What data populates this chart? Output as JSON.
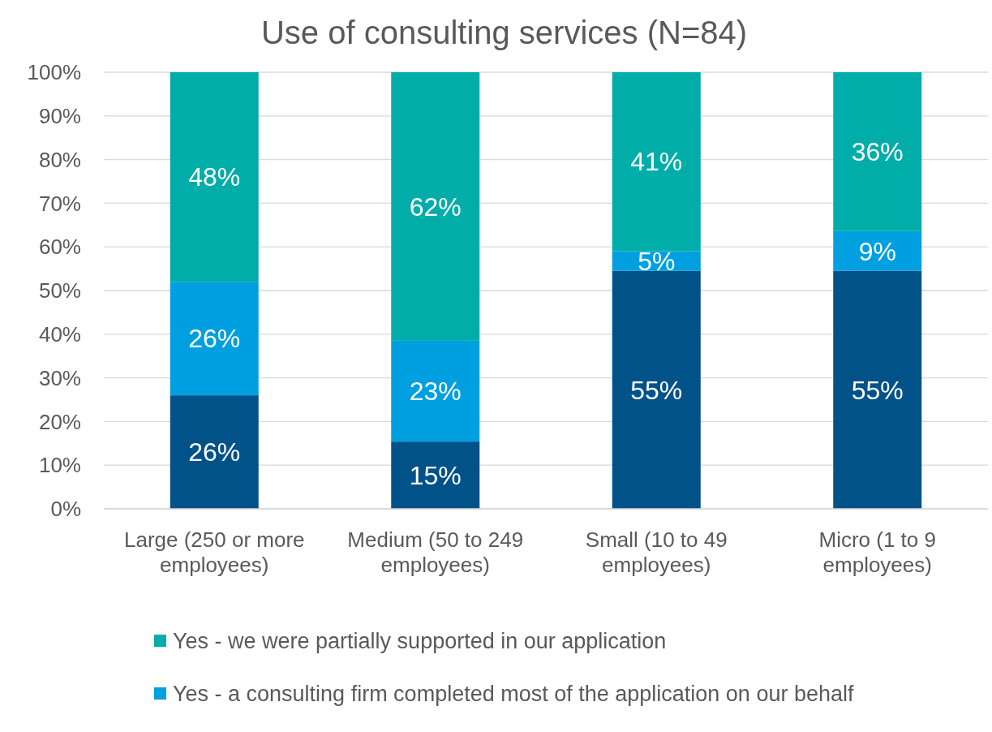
{
  "chart_data": {
    "type": "bar",
    "title": "Use of consulting services (N=84)",
    "stacked": true,
    "categories": [
      "Large (250 or more employees)",
      "Medium (50 to 249 employees)",
      "Small (10 to 49 employees)",
      "Micro (1 to 9 employees)"
    ],
    "series": [
      {
        "color": "#005288",
        "values": [
          26,
          15.4,
          54.5,
          54.5
        ],
        "value_labels": [
          "26%",
          "15%",
          "55%",
          "55%"
        ]
      },
      {
        "name": "Yes - a consulting firm completed most of the application on our behalf",
        "color": "#009fdf",
        "values": [
          26,
          23.1,
          4.5,
          9.1
        ],
        "value_labels": [
          "26%",
          "23%",
          "5%",
          "9%"
        ]
      },
      {
        "name": "Yes - we were partially supported in our application",
        "color": "#00ada8",
        "values": [
          48,
          61.5,
          41,
          36.4
        ],
        "value_labels": [
          "48%",
          "62%",
          "41%",
          "36%"
        ]
      }
    ],
    "ylim": [
      0,
      100
    ],
    "yticks": [
      {
        "value": 0,
        "label": "0%"
      },
      {
        "value": 10,
        "label": "10%"
      },
      {
        "value": 20,
        "label": "20%"
      },
      {
        "value": 30,
        "label": "30%"
      },
      {
        "value": 40,
        "label": "40%"
      },
      {
        "value": 50,
        "label": "50%"
      },
      {
        "value": 60,
        "label": "60%"
      },
      {
        "value": 70,
        "label": "70%"
      },
      {
        "value": 80,
        "label": "80%"
      },
      {
        "value": 90,
        "label": "90%"
      },
      {
        "value": 100,
        "label": "100%"
      }
    ],
    "grid": "y",
    "legend": "bottom"
  }
}
